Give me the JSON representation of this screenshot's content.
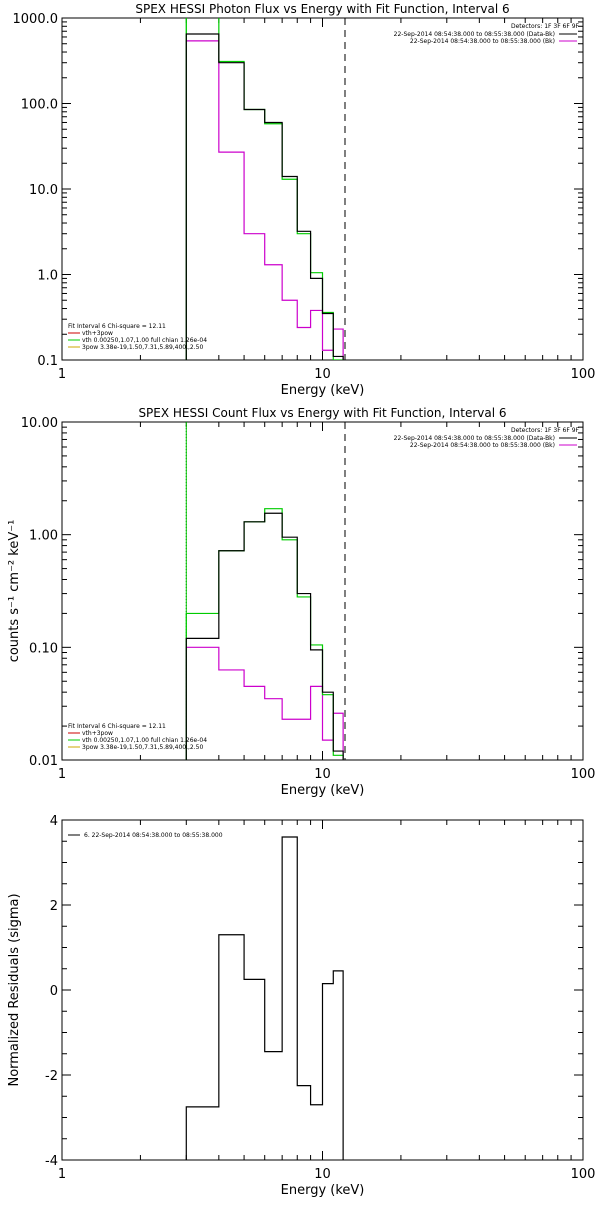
{
  "chart_data": [
    {
      "type": "line",
      "title": "SPEX HESSI Photon Flux vs Energy with Fit Function, Interval 6",
      "xlabel": "Energy (keV)",
      "ylabel": "",
      "xscale": "log",
      "yscale": "log",
      "xlim": [
        1,
        100
      ],
      "ylim": [
        0.1,
        1000
      ],
      "x_ticks": [
        "1",
        "10",
        "100"
      ],
      "y_ticks": [
        "0.1",
        "1.0",
        "10.0",
        "100.0",
        "1000.0"
      ],
      "bin_edges": [
        3.0,
        4.0,
        5.0,
        6.0,
        7.0,
        8.0,
        9.0,
        10.0,
        11.0,
        12.0
      ],
      "series": [
        {
          "name": "22-Sep-2014 08:54:38.000 to 08:55:38.000 (Data-Bk)",
          "color": "#000000",
          "values": [
            650,
            300,
            85,
            60,
            14,
            3.2,
            0.9,
            0.35,
            0.11
          ]
        },
        {
          "name": "22-Sep-2014 08:54:38.000 to 08:55:38.000 (Bk)",
          "color": "#cc00cc",
          "values": [
            540,
            27,
            3.0,
            1.3,
            0.5,
            0.24,
            0.38,
            0.13,
            0.23
          ]
        },
        {
          "name": "vth 0.00250,1.07,1.00  full chian 1.26e-04",
          "color": "#00cc00",
          "values": [
            1200,
            310,
            85,
            58,
            13,
            3.0,
            1.05,
            0.36,
            0.1
          ]
        }
      ],
      "vlines": [
        {
          "x": 3.0,
          "style": "solid",
          "color": "#00cc00"
        },
        {
          "x": 12.2,
          "style": "dashed",
          "color": "#000000"
        }
      ],
      "legend_right": {
        "header": "Detectors: 1F 3F 6F 9F",
        "entries": [
          {
            "text": "22-Sep-2014 08:54:38.000 to 08:55:38.000 (Data-Bk)",
            "color": "#000000"
          },
          {
            "text": "22-Sep-2014 08:54:38.000 to 08:55:38.000 (Bk)",
            "color": "#cc00cc"
          }
        ]
      },
      "legend_left": {
        "header": "Fit Interval  6    Chi-square = 12.11",
        "entries": [
          {
            "text": "vth+3pow",
            "color": "#cc0000"
          },
          {
            "text": "vth 0.00250,1.07,1.00  full chian 1.26e-04",
            "color": "#00cc00"
          },
          {
            "text": "3pow 3.38e-19,1.50,7.31,5.89,400.,2.50",
            "color": "#ccaa00"
          }
        ]
      }
    },
    {
      "type": "line",
      "title": "SPEX HESSI Count Flux vs Energy with Fit Function, Interval 6",
      "xlabel": "Energy (keV)",
      "ylabel": "counts s⁻¹ cm⁻² keV⁻¹",
      "xscale": "log",
      "yscale": "log",
      "xlim": [
        1,
        100
      ],
      "ylim": [
        0.01,
        10
      ],
      "x_ticks": [
        "1",
        "10",
        "100"
      ],
      "y_ticks": [
        "0.01",
        "0.10",
        "1.00",
        "10.00"
      ],
      "bin_edges": [
        3.0,
        4.0,
        5.0,
        6.0,
        7.0,
        8.0,
        9.0,
        10.0,
        11.0,
        12.0
      ],
      "series": [
        {
          "name": "22-Sep-2014 08:54:38.000 to 08:55:38.000 (Data-Bk)",
          "color": "#000000",
          "values": [
            0.12,
            0.72,
            1.3,
            1.55,
            0.95,
            0.3,
            0.095,
            0.04,
            0.012
          ]
        },
        {
          "name": "22-Sep-2014 08:54:38.000 to 08:55:38.000 (Bk)",
          "color": "#cc00cc",
          "values": [
            0.1,
            0.063,
            0.045,
            0.035,
            0.023,
            0.023,
            0.045,
            0.015,
            0.026
          ]
        },
        {
          "name": "vth 0.00250,1.07,1.00  full chian 1.26e-04",
          "color": "#00cc00",
          "values": [
            0.2,
            0.72,
            1.3,
            1.7,
            0.9,
            0.28,
            0.105,
            0.038,
            0.011
          ]
        }
      ],
      "vlines": [
        {
          "x": 3.0,
          "style": "dotted",
          "color": "#000000"
        },
        {
          "x": 3.0,
          "style": "solid",
          "color": "#00cc00"
        },
        {
          "x": 12.2,
          "style": "dashed",
          "color": "#000000"
        }
      ],
      "legend_right": {
        "header": "Detectors: 1F 3F 6F 9F",
        "entries": [
          {
            "text": "22-Sep-2014 08:54:38.000 to 08:55:38.000 (Data-Bk)",
            "color": "#000000"
          },
          {
            "text": "22-Sep-2014 08:54:38.000 to 08:55:38.000 (Bk)",
            "color": "#cc00cc"
          }
        ]
      },
      "legend_left": {
        "header": "Fit Interval  6    Chi-square = 12.11",
        "entries": [
          {
            "text": "vth+3pow",
            "color": "#cc0000"
          },
          {
            "text": "vth 0.00250,1.07,1.00  full chian 1.26e-04",
            "color": "#00cc00"
          },
          {
            "text": "3pow 3.38e-19,1.50,7.31,5.89,400.,2.50",
            "color": "#ccaa00"
          }
        ]
      }
    },
    {
      "type": "line",
      "title": "",
      "xlabel": "Energy (keV)",
      "ylabel": "Normalized Residuals (sigma)",
      "xscale": "log",
      "yscale": "linear",
      "xlim": [
        1,
        100
      ],
      "ylim": [
        -4,
        4
      ],
      "x_ticks": [
        "1",
        "10",
        "100"
      ],
      "y_ticks": [
        "-4",
        "-2",
        "0",
        "2",
        "4"
      ],
      "bin_edges": [
        3.0,
        4.0,
        5.0,
        6.0,
        7.0,
        8.0,
        9.0,
        10.0,
        11.0,
        12.0
      ],
      "series": [
        {
          "name": "6. 22-Sep-2014 08:54:38.000 to 08:55:38.000",
          "color": "#000000",
          "values": [
            -2.75,
            1.3,
            0.25,
            -1.45,
            3.6,
            -2.25,
            -2.7,
            0.15,
            0.45
          ]
        }
      ],
      "legend_right": null,
      "legend_left": {
        "header": "",
        "entries": [
          {
            "text": "6. 22-Sep-2014 08:54:38.000 to 08:55:38.000",
            "color": "#000000"
          }
        ]
      }
    }
  ]
}
